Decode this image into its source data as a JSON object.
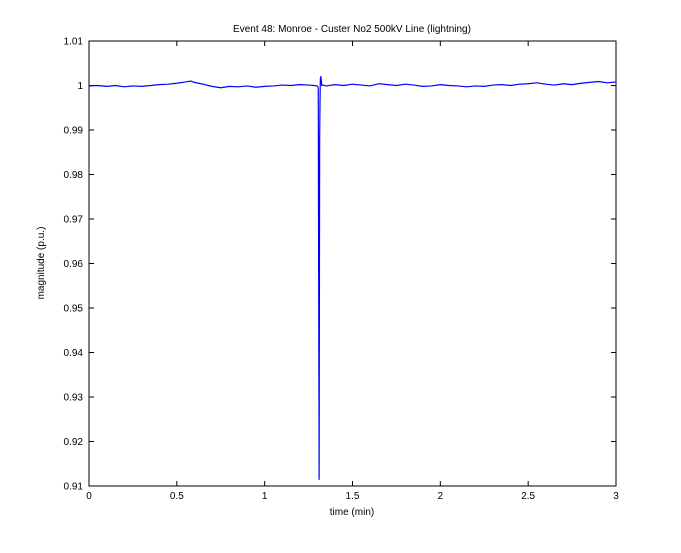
{
  "chart_data": {
    "type": "line",
    "title": "Event 48: Monroe - Custer No2 500kV Line (lightning)",
    "xlabel": "time (min)",
    "ylabel": "magnitude (p.u.)",
    "xlim": [
      0,
      3
    ],
    "ylim": [
      0.91,
      1.01
    ],
    "xticks": [
      0,
      0.5,
      1,
      1.5,
      2,
      2.5,
      3
    ],
    "xtick_labels": [
      "0",
      "0.5",
      "1",
      "1.5",
      "2",
      "2.5",
      "3"
    ],
    "yticks": [
      0.91,
      0.92,
      0.93,
      0.94,
      0.95,
      0.96,
      0.97,
      0.98,
      0.99,
      1.0,
      1.01
    ],
    "ytick_labels": [
      "0.91",
      "0.92",
      "0.93",
      "0.94",
      "0.95",
      "0.96",
      "0.97",
      "0.98",
      "0.99",
      "1",
      "1.01"
    ],
    "grid": false,
    "legend": "none",
    "series": [
      {
        "color": "#0000ff",
        "x": [
          0,
          0.05,
          0.1,
          0.15,
          0.2,
          0.25,
          0.3,
          0.35,
          0.4,
          0.45,
          0.5,
          0.55,
          0.58,
          0.6,
          0.65,
          0.7,
          0.75,
          0.8,
          0.85,
          0.9,
          0.95,
          1.0,
          1.05,
          1.1,
          1.15,
          1.2,
          1.25,
          1.28,
          1.3,
          1.305,
          1.31,
          1.313,
          1.315,
          1.317,
          1.32,
          1.325,
          1.33,
          1.35,
          1.4,
          1.45,
          1.5,
          1.55,
          1.6,
          1.65,
          1.7,
          1.75,
          1.8,
          1.85,
          1.9,
          1.95,
          2.0,
          2.05,
          2.1,
          2.15,
          2.2,
          2.25,
          2.3,
          2.35,
          2.4,
          2.45,
          2.5,
          2.55,
          2.6,
          2.65,
          2.7,
          2.75,
          2.8,
          2.85,
          2.9,
          2.95,
          3.0
        ],
        "y": [
          0.9999,
          1.0,
          0.9998,
          1.0,
          0.9997,
          0.9999,
          0.9998,
          1.0,
          1.0002,
          1.0003,
          1.0005,
          1.0008,
          1.001,
          1.0007,
          1.0003,
          0.9998,
          0.9995,
          0.9998,
          0.9997,
          0.9999,
          0.9996,
          0.9998,
          0.9999,
          1.0001,
          1.0,
          1.0002,
          1.0001,
          1.0,
          0.9999,
          0.9995,
          0.9115,
          0.988,
          0.996,
          1.0015,
          1.002,
          1.0,
          1.0001,
          0.9999,
          1.0002,
          1.0,
          1.0003,
          1.0001,
          0.9999,
          1.0004,
          1.0002,
          1.0,
          1.0003,
          1.0001,
          0.9998,
          0.9999,
          1.0002,
          1.0,
          0.9999,
          0.9997,
          0.9999,
          0.9998,
          1.0001,
          1.0002,
          1.0,
          1.0003,
          1.0004,
          1.0006,
          1.0003,
          1.0001,
          1.0004,
          1.0002,
          1.0005,
          1.0007,
          1.0009,
          1.0006,
          1.0008
        ]
      }
    ]
  }
}
